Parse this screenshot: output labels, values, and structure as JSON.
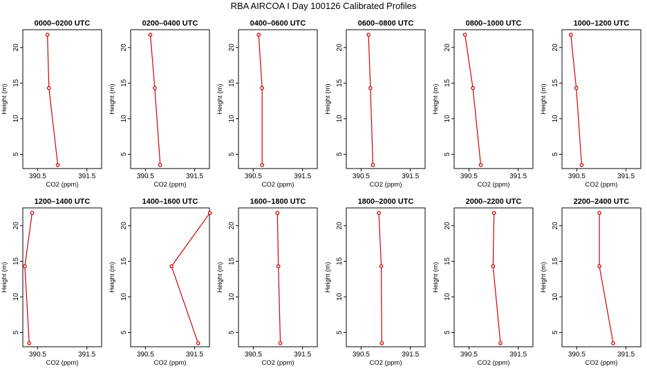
{
  "title": "RBA AIRCOA I  Day 100126  Calibrated Profiles",
  "chart_data": [
    {
      "type": "line",
      "title": "0000–0200 UTC",
      "xlabel": "CO2 (ppm)",
      "ylabel": "Height (m)",
      "xlim": [
        390.2,
        391.8
      ],
      "ylim": [
        3,
        22.5
      ],
      "xticks": [
        "390.5",
        "391.5"
      ],
      "yticks": [
        "5",
        "10",
        "15",
        "20"
      ],
      "x": [
        390.91,
        390.73,
        390.7
      ],
      "y": [
        3.5,
        14.3,
        21.8
      ],
      "color": "#cc0000"
    },
    {
      "type": "line",
      "title": "0200–0400 UTC",
      "xlabel": "CO2 (ppm)",
      "ylabel": "Height (m)",
      "xlim": [
        390.2,
        391.8
      ],
      "ylim": [
        3,
        22.5
      ],
      "xticks": [
        "390.5",
        "391.5"
      ],
      "yticks": [
        "5",
        "10",
        "15",
        "20"
      ],
      "x": [
        390.8,
        390.69,
        390.6
      ],
      "y": [
        3.5,
        14.3,
        21.8
      ],
      "color": "#cc0000"
    },
    {
      "type": "line",
      "title": "0400–0600 UTC",
      "xlabel": "CO2 (ppm)",
      "ylabel": "Height (m)",
      "xlim": [
        390.2,
        391.8
      ],
      "ylim": [
        3,
        22.5
      ],
      "xticks": [
        "390.5",
        "391.5"
      ],
      "yticks": [
        "5",
        "10",
        "15",
        "20"
      ],
      "x": [
        390.68,
        390.68,
        390.61
      ],
      "y": [
        3.5,
        14.3,
        21.8
      ],
      "color": "#cc0000"
    },
    {
      "type": "line",
      "title": "0600–0800 UTC",
      "xlabel": "CO2 (ppm)",
      "ylabel": "Height (m)",
      "xlim": [
        390.2,
        391.8
      ],
      "ylim": [
        3,
        22.5
      ],
      "xticks": [
        "390.5",
        "391.5"
      ],
      "yticks": [
        "5",
        "10",
        "15",
        "20"
      ],
      "x": [
        390.74,
        390.69,
        390.65
      ],
      "y": [
        3.5,
        14.3,
        21.8
      ],
      "color": "#cc0000"
    },
    {
      "type": "line",
      "title": "0800–1000 UTC",
      "xlabel": "CO2 (ppm)",
      "ylabel": "Height (m)",
      "xlim": [
        390.2,
        391.8
      ],
      "ylim": [
        3,
        22.5
      ],
      "xticks": [
        "390.5",
        "391.5"
      ],
      "yticks": [
        "5",
        "10",
        "15",
        "20"
      ],
      "x": [
        390.74,
        390.58,
        390.42
      ],
      "y": [
        3.5,
        14.3,
        21.8
      ],
      "color": "#cc0000"
    },
    {
      "type": "line",
      "title": "1000–1200 UTC",
      "xlabel": "CO2 (ppm)",
      "ylabel": "Height (m)",
      "xlim": [
        390.2,
        391.8
      ],
      "ylim": [
        3,
        22.5
      ],
      "xticks": [
        "390.5",
        "391.5"
      ],
      "yticks": [
        "5",
        "10",
        "15",
        "20"
      ],
      "x": [
        390.6,
        390.49,
        390.38
      ],
      "y": [
        3.5,
        14.3,
        21.8
      ],
      "color": "#cc0000"
    },
    {
      "type": "line",
      "title": "1200–1400 UTC",
      "xlabel": "CO2 (ppm)",
      "ylabel": "Height (m)",
      "xlim": [
        390.2,
        391.8
      ],
      "ylim": [
        3,
        22.5
      ],
      "xticks": [
        "390.5",
        "391.5"
      ],
      "yticks": [
        "5",
        "10",
        "15",
        "20"
      ],
      "x": [
        390.33,
        390.24,
        390.39
      ],
      "y": [
        3.5,
        14.3,
        21.8
      ],
      "color": "#cc0000"
    },
    {
      "type": "line",
      "title": "1400–1600 UTC",
      "xlabel": "CO2 (ppm)",
      "ylabel": "Height (m)",
      "xlim": [
        390.2,
        391.8
      ],
      "ylim": [
        3,
        22.5
      ],
      "xticks": [
        "390.5",
        "391.5"
      ],
      "yticks": [
        "5",
        "10",
        "15",
        "20"
      ],
      "x": [
        391.57,
        391.03,
        391.81
      ],
      "y": [
        3.5,
        14.3,
        21.8
      ],
      "color": "#cc0000"
    },
    {
      "type": "line",
      "title": "1600–1800 UTC",
      "xlabel": "CO2 (ppm)",
      "ylabel": "Height (m)",
      "xlim": [
        390.2,
        391.8
      ],
      "ylim": [
        3,
        22.5
      ],
      "xticks": [
        "390.5",
        "391.5"
      ],
      "yticks": [
        "5",
        "10",
        "15",
        "20"
      ],
      "x": [
        391.05,
        391.01,
        390.99
      ],
      "y": [
        3.5,
        14.3,
        21.8
      ],
      "color": "#cc0000"
    },
    {
      "type": "line",
      "title": "1800–2000 UTC",
      "xlabel": "CO2 (ppm)",
      "ylabel": "Height (m)",
      "xlim": [
        390.2,
        391.8
      ],
      "ylim": [
        3,
        22.5
      ],
      "xticks": [
        "390.5",
        "391.5"
      ],
      "yticks": [
        "5",
        "10",
        "15",
        "20"
      ],
      "x": [
        390.92,
        390.91,
        390.86
      ],
      "y": [
        3.5,
        14.3,
        21.8
      ],
      "color": "#cc0000"
    },
    {
      "type": "line",
      "title": "2000–2200 UTC",
      "xlabel": "CO2 (ppm)",
      "ylabel": "Height (m)",
      "xlim": [
        390.2,
        391.8
      ],
      "ylim": [
        3,
        22.5
      ],
      "xticks": [
        "390.5",
        "391.5"
      ],
      "yticks": [
        "5",
        "10",
        "15",
        "20"
      ],
      "x": [
        391.14,
        390.99,
        391.01
      ],
      "y": [
        3.5,
        14.3,
        21.8
      ],
      "color": "#cc0000"
    },
    {
      "type": "line",
      "title": "2200–2400 UTC",
      "xlabel": "CO2 (ppm)",
      "ylabel": "Height (m)",
      "xlim": [
        390.2,
        391.8
      ],
      "ylim": [
        3,
        22.5
      ],
      "xticks": [
        "390.5",
        "391.5"
      ],
      "yticks": [
        "5",
        "10",
        "15",
        "20"
      ],
      "x": [
        391.24,
        390.96,
        390.96
      ],
      "y": [
        3.5,
        14.3,
        21.8
      ],
      "color": "#cc0000"
    }
  ]
}
